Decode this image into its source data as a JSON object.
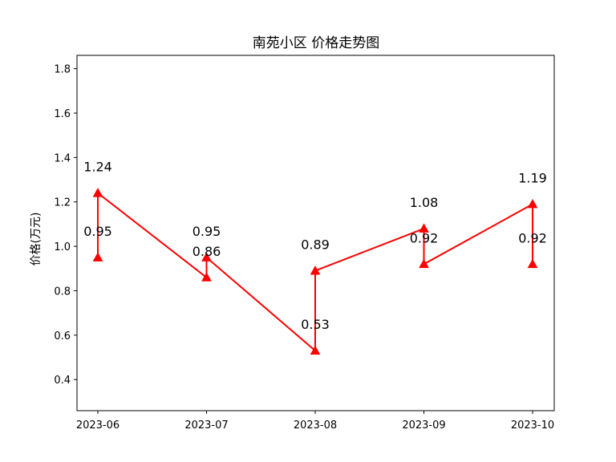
{
  "chart_data": {
    "type": "line",
    "title": "南苑小区 价格走势图",
    "xlabel": "",
    "ylabel": "价格(万元)",
    "categories": [
      "2023-06",
      "2023-07",
      "2023-08",
      "2023-09",
      "2023-10"
    ],
    "points": [
      {
        "x": "2023-06",
        "y": 0.95
      },
      {
        "x": "2023-06",
        "y": 1.24
      },
      {
        "x": "2023-07",
        "y": 0.86
      },
      {
        "x": "2023-07",
        "y": 0.95
      },
      {
        "x": "2023-08",
        "y": 0.53
      },
      {
        "x": "2023-08",
        "y": 0.89
      },
      {
        "x": "2023-09",
        "y": 1.08
      },
      {
        "x": "2023-09",
        "y": 0.92
      },
      {
        "x": "2023-10",
        "y": 1.19
      },
      {
        "x": "2023-10",
        "y": 0.92
      }
    ],
    "data_labels": [
      "0.95",
      "1.24",
      "0.86",
      "0.95",
      "0.53",
      "0.89",
      "1.08",
      "0.92",
      "1.19",
      "0.92"
    ],
    "yticks": [
      "0.4",
      "0.6",
      "0.8",
      "1.0",
      "1.2",
      "1.4",
      "1.6",
      "1.8"
    ],
    "ylim": [
      0.26,
      1.86
    ],
    "line_color": "#ff0000",
    "marker": "triangle-up",
    "grid": false,
    "legend": "none"
  }
}
